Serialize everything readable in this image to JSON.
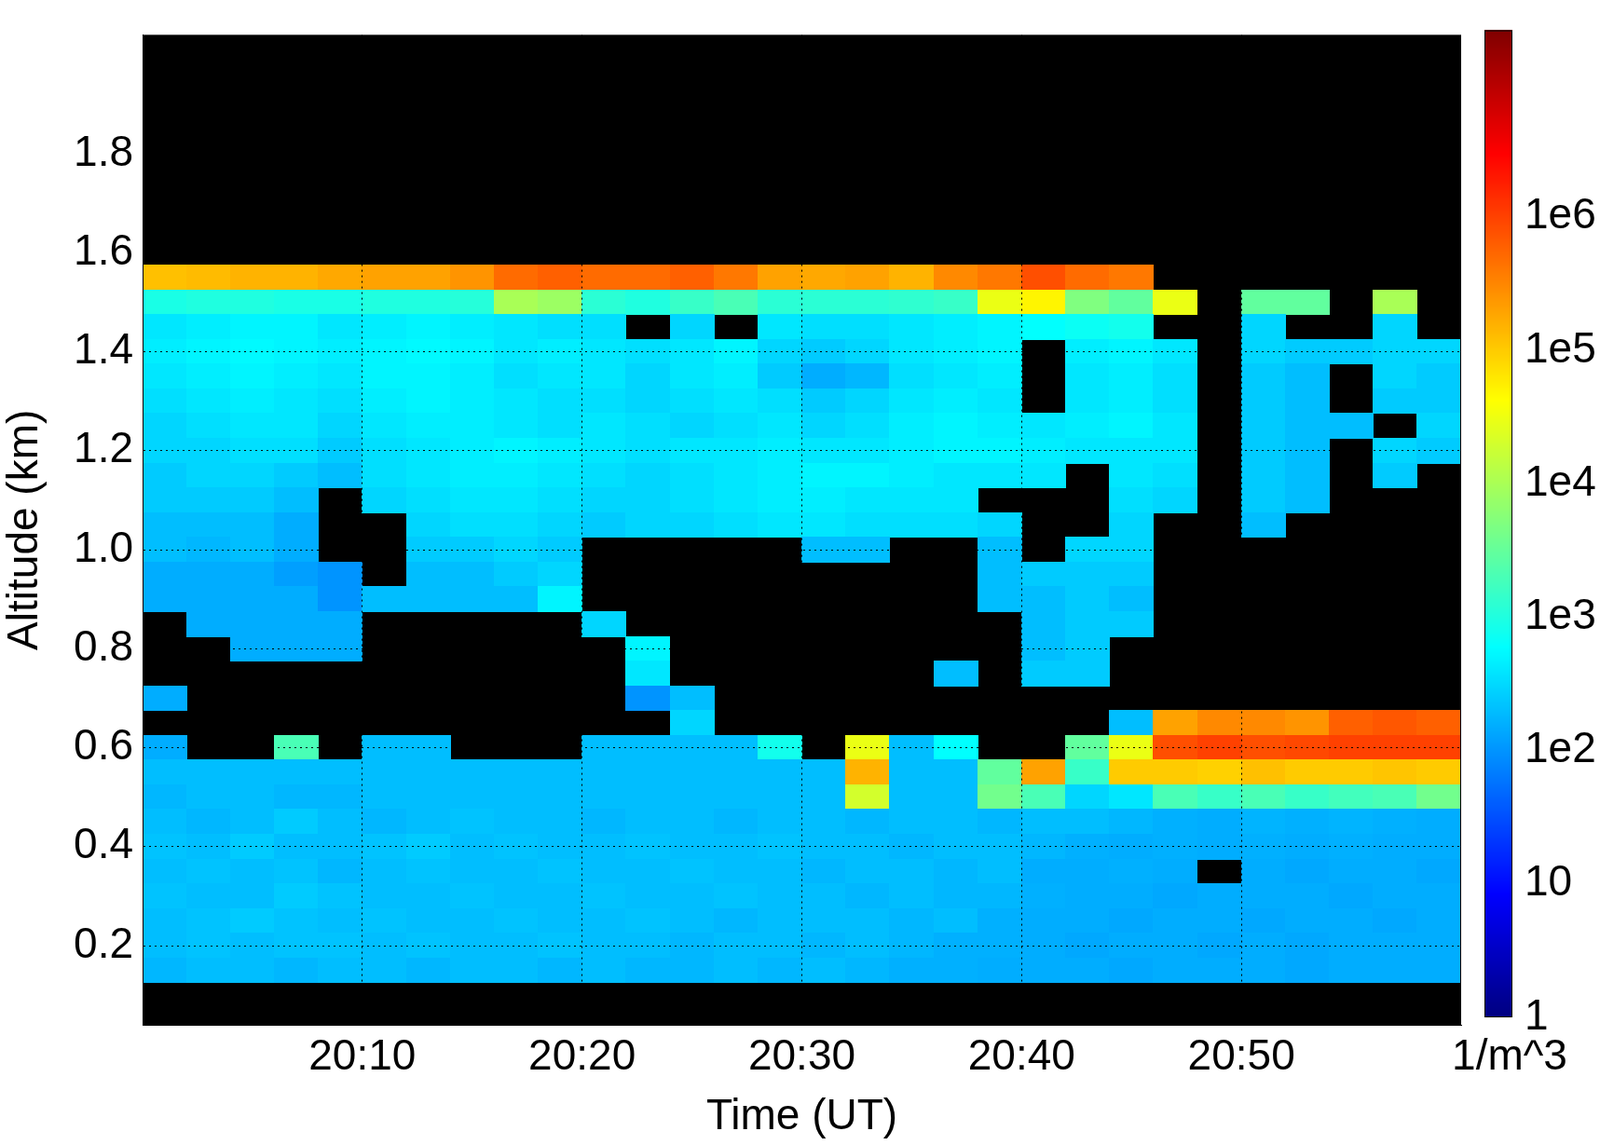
{
  "chart_data": {
    "type": "heatmap",
    "x_label": "Time (UT)",
    "y_label": "Altitude (km)",
    "x": [
      1201,
      1203,
      1205,
      1207,
      1209,
      1211,
      1213,
      1215,
      1217,
      1219,
      1221,
      1223,
      1225,
      1227,
      1229,
      1231,
      1233,
      1235,
      1237,
      1239,
      1241,
      1243,
      1245,
      1247,
      1249,
      1251,
      1253,
      1255,
      1257,
      1259
    ],
    "y": [
      1.55,
      1.5,
      1.45,
      1.4,
      1.35,
      1.3,
      1.25,
      1.2,
      1.15,
      1.1,
      1.05,
      1.0,
      0.95,
      0.9,
      0.85,
      0.8,
      0.75,
      0.7,
      0.65,
      0.6,
      0.55,
      0.5,
      0.45,
      0.4,
      0.35,
      0.3,
      0.25,
      0.2,
      0.15
    ],
    "values": [
      [
        120000.0,
        130000.0,
        150000.0,
        150000.0,
        180000.0,
        200000.0,
        200000.0,
        250000.0,
        500000.0,
        600000.0,
        500000.0,
        500000.0,
        600000.0,
        400000.0,
        200000.0,
        180000.0,
        200000.0,
        150000.0,
        300000.0,
        400000.0,
        800000.0,
        500000.0,
        400000.0,
        null,
        null,
        null,
        null,
        null,
        null,
        null
      ],
      [
        900,
        1000,
        1000,
        900,
        900,
        1000,
        1000,
        1100,
        10000.0,
        8000,
        1200,
        1000,
        1500,
        2000,
        1200,
        1200,
        1200,
        1300,
        1500,
        30000.0,
        50000.0,
        5000,
        3000,
        30000.0,
        null,
        3000,
        3000,
        null,
        10000.0,
        null
      ],
      [
        400,
        450,
        500,
        500,
        400,
        450,
        500,
        450,
        400,
        350,
        350,
        null,
        300,
        null,
        400,
        350,
        350,
        400,
        450,
        500,
        600,
        700,
        800,
        null,
        null,
        300,
        null,
        null,
        300,
        null
      ],
      [
        450,
        500,
        550,
        500,
        450,
        500,
        550,
        500,
        400,
        450,
        400,
        350,
        400,
        500,
        300,
        250,
        300,
        400,
        450,
        500,
        null,
        450,
        500,
        400,
        null,
        300,
        250,
        250,
        300,
        300
      ],
      [
        400,
        450,
        500,
        450,
        400,
        500,
        500,
        450,
        350,
        400,
        400,
        300,
        400,
        450,
        250,
        150,
        180,
        350,
        400,
        450,
        null,
        400,
        450,
        350,
        null,
        250,
        200,
        null,
        300,
        250
      ],
      [
        350,
        400,
        450,
        400,
        350,
        450,
        500,
        450,
        400,
        350,
        350,
        300,
        350,
        400,
        350,
        250,
        300,
        400,
        450,
        400,
        null,
        400,
        450,
        350,
        null,
        250,
        200,
        null,
        250,
        250
      ],
      [
        300,
        350,
        400,
        400,
        300,
        400,
        450,
        450,
        400,
        350,
        400,
        350,
        300,
        350,
        400,
        300,
        350,
        450,
        500,
        450,
        400,
        450,
        500,
        400,
        null,
        250,
        200,
        200,
        null,
        300
      ],
      [
        300,
        300,
        350,
        350,
        250,
        350,
        400,
        450,
        500,
        450,
        400,
        350,
        400,
        400,
        450,
        400,
        400,
        450,
        500,
        500,
        450,
        400,
        400,
        400,
        null,
        250,
        200,
        null,
        300,
        250
      ],
      [
        250,
        300,
        300,
        250,
        200,
        350,
        400,
        450,
        450,
        400,
        350,
        300,
        350,
        400,
        450,
        500,
        500,
        450,
        400,
        400,
        400,
        null,
        400,
        350,
        null,
        250,
        200,
        null,
        250,
        null
      ],
      [
        250,
        250,
        250,
        200,
        null,
        300,
        350,
        400,
        400,
        350,
        300,
        300,
        350,
        400,
        450,
        450,
        400,
        400,
        400,
        null,
        null,
        null,
        350,
        300,
        null,
        250,
        200,
        null,
        null,
        null
      ],
      [
        200,
        200,
        200,
        150,
        null,
        null,
        300,
        350,
        350,
        300,
        250,
        300,
        300,
        350,
        400,
        400,
        350,
        350,
        350,
        300,
        null,
        null,
        300,
        null,
        null,
        200,
        null,
        null,
        null,
        null
      ],
      [
        200,
        180,
        200,
        150,
        null,
        null,
        250,
        250,
        300,
        250,
        null,
        null,
        null,
        null,
        null,
        200,
        200,
        null,
        null,
        200,
        null,
        300,
        300,
        null,
        null,
        null,
        null,
        null,
        null,
        null
      ],
      [
        150,
        150,
        150,
        120,
        100,
        null,
        200,
        200,
        250,
        300,
        null,
        null,
        null,
        null,
        null,
        null,
        null,
        null,
        null,
        200,
        250,
        250,
        250,
        null,
        null,
        null,
        null,
        null,
        null,
        null
      ],
      [
        150,
        150,
        150,
        150,
        100,
        200,
        200,
        200,
        200,
        500,
        null,
        null,
        null,
        null,
        null,
        null,
        null,
        null,
        null,
        200,
        200,
        250,
        200,
        null,
        null,
        null,
        null,
        null,
        null,
        null
      ],
      [
        null,
        150,
        150,
        150,
        150,
        null,
        null,
        null,
        null,
        null,
        300,
        null,
        null,
        null,
        null,
        null,
        null,
        null,
        null,
        null,
        200,
        250,
        250,
        null,
        null,
        null,
        null,
        null,
        null,
        null
      ],
      [
        null,
        null,
        150,
        150,
        150,
        null,
        null,
        null,
        null,
        null,
        null,
        500,
        null,
        null,
        null,
        null,
        null,
        null,
        null,
        null,
        200,
        250,
        null,
        null,
        null,
        null,
        null,
        null,
        null,
        null
      ],
      [
        null,
        null,
        null,
        null,
        null,
        null,
        null,
        null,
        null,
        null,
        null,
        400,
        null,
        null,
        null,
        null,
        null,
        null,
        200,
        null,
        250,
        250,
        null,
        null,
        null,
        null,
        null,
        null,
        null,
        null
      ],
      [
        150,
        null,
        null,
        null,
        null,
        null,
        null,
        null,
        null,
        null,
        null,
        100,
        200,
        null,
        null,
        null,
        null,
        null,
        null,
        null,
        null,
        null,
        null,
        null,
        null,
        null,
        null,
        null,
        null,
        null
      ],
      [
        null,
        null,
        null,
        null,
        null,
        null,
        null,
        null,
        null,
        null,
        null,
        null,
        300,
        null,
        null,
        null,
        null,
        null,
        null,
        null,
        null,
        null,
        200,
        200000.0,
        300000.0,
        300000.0,
        250000.0,
        600000.0,
        700000.0,
        600000.0
      ],
      [
        150,
        null,
        null,
        2000,
        null,
        200,
        200,
        null,
        null,
        null,
        200,
        200,
        200,
        200,
        800,
        null,
        30000.0,
        200,
        600,
        null,
        null,
        3000,
        30000.0,
        800000.0,
        1000000.0,
        800000.0,
        900000.0,
        1000000.0,
        1000000.0,
        1000000.0
      ],
      [
        200,
        200,
        200,
        200,
        200,
        200,
        200,
        200,
        200,
        200,
        200,
        200,
        200,
        200,
        200,
        200,
        150000.0,
        200,
        200,
        3000,
        200000.0,
        1500,
        100000.0,
        100000.0,
        90000.0,
        120000.0,
        100000.0,
        100000.0,
        110000.0,
        100000.0
      ],
      [
        180,
        200,
        200,
        180,
        180,
        200,
        200,
        200,
        200,
        200,
        200,
        200,
        200,
        200,
        200,
        200,
        20000.0,
        200,
        200,
        4000,
        2000,
        300,
        400,
        2000,
        1500,
        2000,
        1500,
        1800,
        2000,
        4000
      ],
      [
        200,
        180,
        200,
        250,
        200,
        180,
        200,
        220,
        200,
        200,
        180,
        200,
        200,
        180,
        200,
        200,
        180,
        200,
        200,
        180,
        200,
        200,
        180,
        160,
        150,
        170,
        160,
        170,
        160,
        150
      ],
      [
        220,
        200,
        250,
        200,
        200,
        220,
        250,
        200,
        220,
        200,
        200,
        220,
        200,
        200,
        220,
        200,
        200,
        180,
        200,
        200,
        180,
        160,
        150,
        160,
        150,
        160,
        150,
        160,
        150,
        150
      ],
      [
        200,
        220,
        200,
        220,
        180,
        200,
        220,
        200,
        200,
        220,
        200,
        200,
        220,
        200,
        200,
        180,
        200,
        200,
        180,
        200,
        150,
        150,
        160,
        150,
        null,
        150,
        140,
        150,
        150,
        140
      ],
      [
        220,
        200,
        200,
        250,
        220,
        200,
        200,
        220,
        200,
        200,
        220,
        200,
        200,
        220,
        200,
        200,
        180,
        200,
        180,
        180,
        160,
        150,
        150,
        140,
        150,
        150,
        150,
        140,
        150,
        150
      ],
      [
        200,
        220,
        250,
        220,
        200,
        220,
        200,
        200,
        220,
        200,
        200,
        220,
        200,
        180,
        200,
        200,
        200,
        180,
        200,
        160,
        150,
        150,
        140,
        150,
        150,
        140,
        150,
        150,
        140,
        150
      ],
      [
        200,
        220,
        200,
        220,
        220,
        200,
        220,
        200,
        200,
        220,
        200,
        200,
        180,
        200,
        200,
        180,
        200,
        180,
        160,
        160,
        150,
        140,
        150,
        150,
        140,
        150,
        140,
        150,
        150,
        150
      ],
      [
        180,
        200,
        200,
        180,
        200,
        200,
        180,
        200,
        200,
        180,
        200,
        180,
        180,
        200,
        180,
        200,
        180,
        160,
        160,
        150,
        150,
        150,
        140,
        150,
        150,
        150,
        140,
        150,
        150,
        150
      ]
    ],
    "xlim": [
      1200,
      1260
    ],
    "xticks": [
      {
        "value": 1210,
        "label": "20:10"
      },
      {
        "value": 1220,
        "label": "20:20"
      },
      {
        "value": 1230,
        "label": "20:30"
      },
      {
        "value": 1240,
        "label": "20:40"
      },
      {
        "value": 1250,
        "label": "20:50"
      }
    ],
    "ylim": [
      0.04,
      2.04
    ],
    "yticks": [
      0.2,
      0.4,
      0.6,
      0.8,
      {
        "value": 1,
        "label": "1.0"
      },
      1.2,
      1.4,
      1.6,
      1.8
    ],
    "grid": true,
    "colorbar": {
      "range": [
        1,
        25000000
      ],
      "ticks": [
        1,
        10,
        {
          "value": 100,
          "label": "1e2"
        },
        {
          "value": 1000,
          "label": "1e3"
        },
        {
          "value": 10000,
          "label": "1e4"
        },
        {
          "value": 100000,
          "label": "1e5"
        },
        {
          "value": 1000000,
          "label": "1e6"
        }
      ],
      "label": "1/m^3",
      "log": true
    }
  }
}
